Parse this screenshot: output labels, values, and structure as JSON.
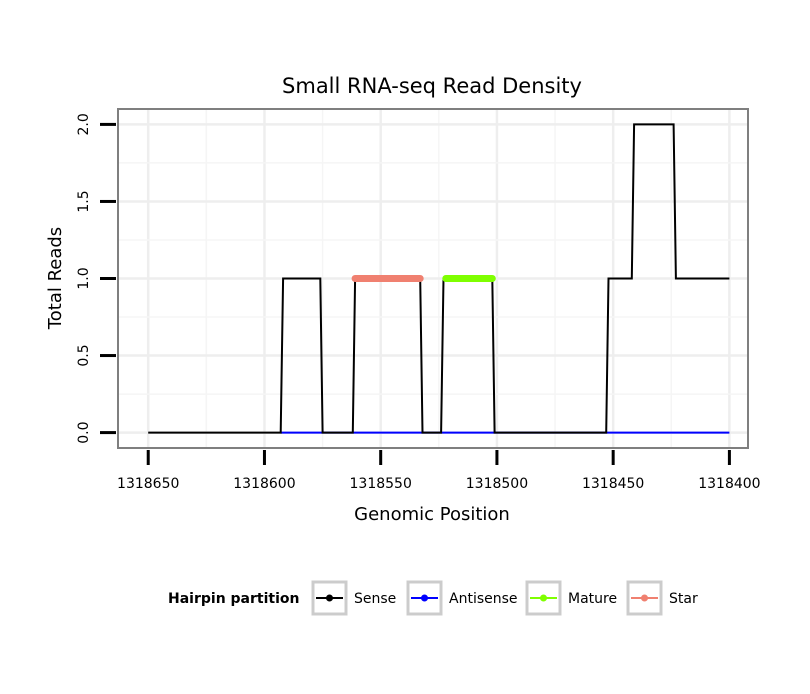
{
  "chart_data": {
    "type": "line",
    "title": "Small RNA-seq Read Density",
    "xlabel": "Genomic Position",
    "ylabel": "Total Reads",
    "x_reversed": true,
    "xlim": [
      1318663,
      1318392
    ],
    "ylim": [
      -0.1,
      2.1
    ],
    "x_ticks": [
      1318650,
      1318600,
      1318550,
      1318500,
      1318450,
      1318400
    ],
    "x_tick_labels": [
      "1318650",
      "1318600",
      "1318550",
      "1318500",
      "1318450",
      "1318400"
    ],
    "y_ticks": [
      0,
      0.5,
      1,
      1.5,
      2
    ],
    "y_tick_labels": [
      "0.0",
      "0.5",
      "1.0",
      "1.5",
      "2.0"
    ],
    "grid": true,
    "legend": {
      "title": "Hairpin partition",
      "position": "bottom",
      "entries": [
        "Sense",
        "Antisense",
        "Mature",
        "Star"
      ]
    },
    "series": [
      {
        "name": "Sense",
        "color": "#000000",
        "x": [
          1318650,
          1318593,
          1318592,
          1318576,
          1318575,
          1318562,
          1318561,
          1318533,
          1318532,
          1318524,
          1318523,
          1318502,
          1318501,
          1318479,
          1318478,
          1318453,
          1318452,
          1318442,
          1318441,
          1318424,
          1318423,
          1318411,
          1318410,
          1318400
        ],
        "values": [
          0,
          0,
          1,
          1,
          0,
          0,
          1,
          1,
          0,
          0,
          1,
          1,
          0,
          0,
          0,
          0,
          1,
          1,
          2,
          2,
          1,
          1,
          1,
          1
        ]
      },
      {
        "name": "Antisense",
        "color": "#0000FF",
        "x": [
          1318593,
          1318400
        ],
        "values": [
          0,
          0
        ]
      },
      {
        "name": "Mature",
        "color": "#7FFF00",
        "x": [
          1318522,
          1318502
        ],
        "values": [
          1,
          1
        ]
      },
      {
        "name": "Star",
        "color": "#F08070",
        "x": [
          1318561,
          1318533
        ],
        "values": [
          1,
          1
        ]
      }
    ]
  }
}
